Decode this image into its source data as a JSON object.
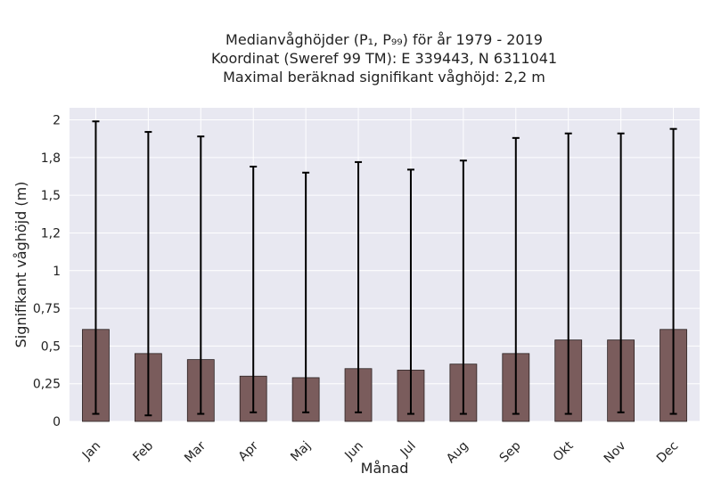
{
  "chart_data": {
    "type": "bar",
    "title_lines": [
      "Medianvåghöjder (P₁, P₉₉) för år 1979 - 2019",
      "Koordinat (Sweref 99 TM): E 339443, N 6311041",
      "Maximal beräknad signifikant våghöjd: 2,2 m"
    ],
    "xlabel": "Månad",
    "ylabel": "Signifikant våghöjd (m)",
    "categories": [
      "Jan",
      "Feb",
      "Mar",
      "Apr",
      "Maj",
      "Jun",
      "Jul",
      "Aug",
      "Sep",
      "Okt",
      "Nov",
      "Dec"
    ],
    "values": [
      0.61,
      0.45,
      0.41,
      0.3,
      0.29,
      0.35,
      0.34,
      0.38,
      0.45,
      0.54,
      0.54,
      0.61
    ],
    "p1": [
      0.05,
      0.04,
      0.05,
      0.06,
      0.06,
      0.06,
      0.05,
      0.05,
      0.05,
      0.05,
      0.06,
      0.05
    ],
    "p99": [
      1.99,
      1.92,
      1.89,
      1.69,
      1.65,
      1.72,
      1.67,
      1.73,
      1.88,
      1.91,
      1.91,
      1.94
    ],
    "ylim": [
      0,
      2.08
    ],
    "yticks": [
      0,
      0.25,
      0.5,
      0.75,
      1,
      1.25,
      1.5,
      1.75,
      2
    ],
    "ytick_labels": [
      "0",
      "0,25",
      "0,5",
      "0,75",
      "1",
      "1,2",
      "1,5",
      "1,8",
      "2"
    ],
    "grid": true,
    "colors": {
      "bar": "#7a5c5c",
      "bar_edge": "#2a2020",
      "errorbar": "#000000",
      "plot_bg": "#e8e8f1",
      "grid": "#ffffff"
    }
  }
}
